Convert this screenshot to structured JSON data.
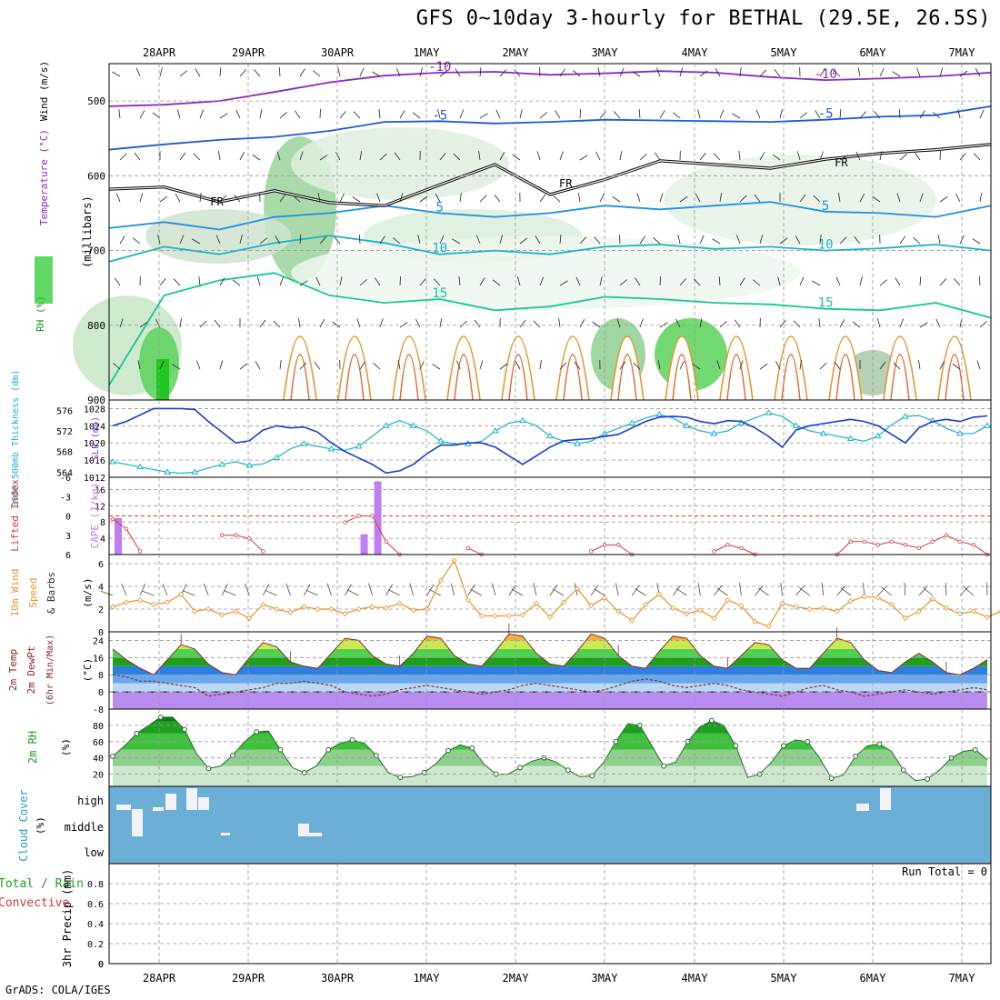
{
  "title": "GFS 0~10day 3-hourly for BETHAL (29.5E, 26.5S)",
  "footer": "GrADS: COLA/IGES",
  "run_total": "Run Total = 0",
  "colors": {
    "rh_green": "#1ec81e",
    "temp_purple": "#8a2bbf",
    "temp_blue": "#1e5ad2",
    "temp_cyan": "#19b4c8",
    "temp_orange": "#e6962d",
    "cloud_blue": "#6baed6",
    "cape_purple": "#c07ff0",
    "li_red": "#d83a3a"
  },
  "chart_data": [
    {
      "id": "upper_air",
      "type": "contour",
      "ylabel": "(millibars)",
      "left_labels": [
        "RH (%)",
        "Temperature (°C)",
        "Wind (m/s)"
      ],
      "yticks": [
        500,
        600,
        700,
        800,
        900
      ],
      "ylim": [
        450,
        900
      ],
      "x_dates": [
        "28APR",
        "29APR",
        "30APR",
        "1MAY",
        "2MAY",
        "3MAY",
        "4MAY",
        "5MAY",
        "6MAY",
        "7MAY"
      ],
      "freezing_label": "FR",
      "temperature_lines": [
        {
          "label": "-10",
          "color": "#8a2bbf",
          "p": [
            507,
            505,
            500,
            488,
            475,
            466,
            462,
            461,
            465,
            463,
            460,
            462,
            468,
            472,
            470,
            467,
            462
          ]
        },
        {
          "label": "-5",
          "color": "#1e5ad2",
          "p": [
            565,
            558,
            552,
            548,
            540,
            528,
            527,
            530,
            528,
            525,
            526,
            527,
            528,
            525,
            521,
            519,
            507
          ]
        },
        {
          "label": "5",
          "color": "#1e90e6",
          "p": [
            670,
            662,
            672,
            655,
            650,
            640,
            650,
            655,
            650,
            640,
            645,
            640,
            635,
            648,
            650,
            655,
            640
          ]
        },
        {
          "label": "10",
          "color": "#19b4c8",
          "p": [
            715,
            695,
            705,
            690,
            680,
            690,
            705,
            700,
            705,
            695,
            692,
            698,
            695,
            700,
            697,
            692,
            700
          ]
        },
        {
          "label": "15",
          "color": "#14c896",
          "p": [
            880,
            760,
            740,
            730,
            760,
            770,
            765,
            780,
            775,
            762,
            765,
            770,
            772,
            778,
            780,
            770,
            790
          ]
        }
      ],
      "freezing_line_p": [
        618,
        615,
        635,
        620,
        636,
        640,
        612,
        585,
        625,
        605,
        580,
        585,
        590,
        578,
        570,
        565,
        558
      ]
    },
    {
      "id": "thickness_slp",
      "type": "line",
      "left_label": "1000-500mb Thickness (dm)",
      "right_label": "SLP (mb)",
      "left_ticks": [
        564,
        568,
        572,
        576
      ],
      "right_ticks": [
        1012,
        1016,
        1020,
        1024,
        1028
      ],
      "left_ylim": [
        563,
        578
      ],
      "right_ylim": [
        1012,
        1030
      ],
      "thickness": [
        566,
        565.5,
        565,
        564.5,
        564,
        563.8,
        564,
        564.8,
        565.5,
        566,
        565.3,
        565.6,
        566.8,
        568.5,
        569.5,
        569,
        568.5,
        568.2,
        569,
        571,
        573,
        574,
        573,
        572,
        570,
        569.5,
        569.5,
        570,
        572,
        573.5,
        574,
        573,
        571,
        570,
        569.5,
        570,
        571.5,
        572.5,
        573.5,
        574.5,
        575.2,
        574.5,
        573,
        572,
        571.5,
        572,
        573.5,
        574.5,
        575.5,
        574.8,
        573,
        572,
        571.5,
        571,
        570.5,
        570,
        571,
        573.2,
        574.8,
        575,
        574,
        572.5,
        571.5,
        571.5,
        573
      ],
      "slp": [
        1024,
        1025,
        1026.5,
        1028,
        1028,
        1028,
        1027.8,
        1025,
        1022.5,
        1020,
        1020.5,
        1023,
        1024,
        1023.5,
        1023.7,
        1022.5,
        1020,
        1018,
        1016.5,
        1015,
        1013,
        1013.5,
        1015,
        1017.5,
        1019.5,
        1019.5,
        1020,
        1020,
        1019,
        1017,
        1015,
        1017,
        1019,
        1020.5,
        1020.8,
        1021,
        1021.5,
        1022,
        1023.5,
        1025,
        1026,
        1026.2,
        1026,
        1025,
        1024.5,
        1025.2,
        1025,
        1023.5,
        1021.5,
        1019,
        1023,
        1024,
        1024.5,
        1025,
        1025.5,
        1025,
        1024,
        1022,
        1020,
        1023.5,
        1025,
        1025.5,
        1025,
        1026,
        1026.3
      ]
    },
    {
      "id": "cape_li",
      "type": "bar",
      "left_label": "Lifted Index",
      "right_label": "CAPE (J/kg)",
      "left_ticks": [
        -6,
        -3,
        0,
        3,
        6
      ],
      "right_ticks": [
        4,
        8,
        12,
        16
      ],
      "li_ylim": [
        -6,
        6
      ],
      "cape_ylim": [
        0,
        19
      ],
      "cape_bars": [
        {
          "i": 0,
          "v": 9
        },
        {
          "i": 18,
          "v": 5
        },
        {
          "i": 19,
          "v": 18
        }
      ],
      "lifted_index_segments": [
        {
          "start": 0,
          "values": [
            0.5,
            2,
            5.5
          ]
        },
        {
          "start": 8,
          "values": [
            3,
            3,
            3.5,
            5.5
          ]
        },
        {
          "start": 17,
          "values": [
            1,
            0,
            0,
            4,
            6
          ]
        },
        {
          "start": 26,
          "values": [
            5,
            6
          ]
        },
        {
          "start": 35,
          "values": [
            5.5,
            4.5,
            4.5,
            6
          ]
        },
        {
          "start": 44,
          "values": [
            5.5,
            4.5,
            5,
            6
          ]
        },
        {
          "start": 53,
          "values": [
            6,
            4,
            4,
            4.5,
            4,
            4.5,
            5,
            4,
            3,
            4,
            4.5,
            6
          ]
        }
      ]
    },
    {
      "id": "wind10m",
      "type": "line",
      "left_label": "10m Wind Speed & Barbs",
      "unit": "(m/s)",
      "ticks": [
        0,
        2,
        4,
        6
      ],
      "ylim": [
        0,
        6.8
      ],
      "speed": [
        2.2,
        2.6,
        2.8,
        2.4,
        2.6,
        3.3,
        1.8,
        2,
        1.5,
        1.8,
        1.2,
        2.4,
        2.0,
        1.7,
        2.2,
        2.0,
        2.0,
        1.6,
        2.0,
        2.2,
        2.1,
        2.5,
        1.9,
        2.0,
        4.5,
        6.3,
        2.8,
        1.4,
        1.4,
        1.4,
        1.5,
        2.5,
        1.3,
        2.6,
        3.8,
        2.3,
        3.0,
        1.8,
        1.0,
        2.4,
        3.3,
        2.1,
        1.6,
        1.9,
        1.2,
        2.8,
        2.3,
        0.9,
        0.5,
        2.5,
        2.2,
        2.0,
        2.1,
        1.8,
        2.7,
        3.1,
        3.0,
        2.4,
        1.2,
        1.8,
        2.9,
        2.1,
        1.6,
        1.8,
        1.3,
        1.8
      ]
    },
    {
      "id": "temp2m",
      "type": "area",
      "left_label": "2m Temp 2m DewPt (6hr Min/Max)",
      "unit": "(°C)",
      "ticks": [
        -8,
        0,
        8,
        16,
        24
      ],
      "ylim": [
        -8,
        28
      ],
      "temperature": [
        20,
        15,
        11,
        8,
        15,
        22,
        20,
        13,
        9,
        8,
        16,
        23,
        21,
        14,
        12,
        11,
        18,
        25,
        24,
        17,
        13,
        12,
        18,
        26,
        25,
        17,
        13,
        12,
        19,
        27,
        26,
        18,
        13,
        12,
        19,
        27,
        25,
        17,
        12,
        11,
        19,
        26,
        25,
        17,
        12,
        11,
        17,
        23,
        22,
        15,
        11,
        11,
        18,
        25,
        23,
        15,
        10,
        9,
        14,
        18,
        14,
        9,
        8,
        11,
        15
      ],
      "dewpoint": [
        8,
        7,
        5,
        5,
        4,
        3,
        2,
        -2,
        -1,
        0,
        1,
        2,
        4,
        4,
        5,
        4,
        3,
        0,
        -1,
        -2,
        -1,
        1,
        2,
        3,
        2,
        1,
        0,
        -1,
        0,
        1,
        3,
        4,
        3,
        2,
        1,
        0,
        1,
        3,
        5,
        6,
        5,
        3,
        2,
        3,
        4,
        3,
        1,
        0,
        -1,
        -2,
        0,
        2,
        3,
        1,
        0,
        -2,
        -1,
        0,
        1,
        0,
        -1,
        0,
        1,
        2,
        1
      ]
    },
    {
      "id": "rh2m",
      "type": "area",
      "left_label": "2m RH",
      "unit": "(%)",
      "ticks": [
        20,
        40,
        60,
        80
      ],
      "ylim": [
        5,
        100
      ],
      "rh": [
        42,
        55,
        70,
        80,
        90,
        90,
        75,
        45,
        27,
        30,
        43,
        60,
        72,
        73,
        50,
        28,
        22,
        30,
        50,
        58,
        62,
        58,
        43,
        22,
        16,
        17,
        22,
        33,
        49,
        56,
        52,
        32,
        20,
        20,
        28,
        36,
        40,
        35,
        25,
        17,
        18,
        35,
        60,
        82,
        80,
        55,
        30,
        35,
        60,
        78,
        86,
        80,
        55,
        16,
        20,
        35,
        55,
        62,
        60,
        40,
        15,
        19,
        42,
        55,
        57,
        48,
        25,
        12,
        14,
        25,
        40,
        48,
        50,
        38
      ]
    },
    {
      "id": "cloud",
      "type": "heatmap",
      "left_label": "Cloud Cover",
      "unit": "(%)",
      "levels": [
        "high",
        "middle",
        "low"
      ]
    },
    {
      "id": "precip",
      "type": "bar",
      "left_label_1": "Total / Rain",
      "left_label_2": "Convective",
      "ylabel": "3hr Precip (mm)",
      "ticks": [
        0,
        0.2,
        0.4,
        0.6,
        0.8
      ],
      "ylim": [
        0,
        1
      ],
      "values": []
    }
  ]
}
